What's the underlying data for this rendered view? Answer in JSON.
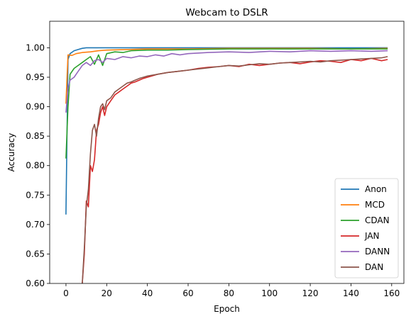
{
  "chart_data": {
    "type": "line",
    "title": "Webcam to DSLR",
    "xlabel": "Epoch",
    "ylabel": "Accuracy",
    "xlim": [
      -8,
      166
    ],
    "ylim": [
      0.6,
      1.045
    ],
    "xticks": [
      0,
      20,
      40,
      60,
      80,
      100,
      120,
      140,
      160
    ],
    "yticks": [
      0.6,
      0.65,
      0.7,
      0.75,
      0.8,
      0.85,
      0.9,
      0.95,
      1.0
    ],
    "grid": false,
    "legend_position": "lower-right",
    "series": [
      {
        "name": "Anon",
        "color": "#1f77b4",
        "points": [
          [
            0,
            0.717
          ],
          [
            1,
            0.98
          ],
          [
            2,
            0.99
          ],
          [
            4,
            0.995
          ],
          [
            6,
            0.997
          ],
          [
            8,
            0.999
          ],
          [
            10,
            1.0
          ],
          [
            20,
            1.0
          ],
          [
            40,
            1.0
          ],
          [
            60,
            1.0
          ],
          [
            80,
            1.0
          ],
          [
            100,
            1.0
          ],
          [
            120,
            1.0
          ],
          [
            140,
            1.0
          ],
          [
            158,
            1.0
          ]
        ]
      },
      {
        "name": "MCD",
        "color": "#ff7f0e",
        "points": [
          [
            0,
            0.905
          ],
          [
            1,
            0.988
          ],
          [
            3,
            0.987
          ],
          [
            5,
            0.99
          ],
          [
            8,
            0.992
          ],
          [
            12,
            0.993
          ],
          [
            16,
            0.995
          ],
          [
            20,
            0.996
          ],
          [
            30,
            0.997
          ],
          [
            40,
            0.998
          ],
          [
            60,
            0.998
          ],
          [
            80,
            0.999
          ],
          [
            100,
            0.999
          ],
          [
            120,
            0.999
          ],
          [
            140,
            0.998
          ],
          [
            158,
            0.999
          ]
        ]
      },
      {
        "name": "CDAN",
        "color": "#2ca02c",
        "points": [
          [
            0,
            0.812
          ],
          [
            1,
            0.9
          ],
          [
            2,
            0.955
          ],
          [
            4,
            0.965
          ],
          [
            6,
            0.97
          ],
          [
            8,
            0.975
          ],
          [
            10,
            0.98
          ],
          [
            12,
            0.985
          ],
          [
            14,
            0.972
          ],
          [
            16,
            0.988
          ],
          [
            18,
            0.97
          ],
          [
            20,
            0.99
          ],
          [
            24,
            0.993
          ],
          [
            28,
            0.992
          ],
          [
            32,
            0.995
          ],
          [
            40,
            0.996
          ],
          [
            50,
            0.996
          ],
          [
            60,
            0.997
          ],
          [
            80,
            0.998
          ],
          [
            100,
            0.998
          ],
          [
            120,
            0.998
          ],
          [
            140,
            0.998
          ],
          [
            158,
            0.998
          ]
        ]
      },
      {
        "name": "JAN",
        "color": "#d62728",
        "points": [
          [
            8,
            0.6
          ],
          [
            9,
            0.65
          ],
          [
            10,
            0.74
          ],
          [
            11,
            0.73
          ],
          [
            12,
            0.8
          ],
          [
            13,
            0.79
          ],
          [
            14,
            0.81
          ],
          [
            15,
            0.86
          ],
          [
            16,
            0.87
          ],
          [
            17,
            0.89
          ],
          [
            18,
            0.9
          ],
          [
            19,
            0.885
          ],
          [
            20,
            0.9
          ],
          [
            22,
            0.91
          ],
          [
            24,
            0.92
          ],
          [
            26,
            0.925
          ],
          [
            28,
            0.93
          ],
          [
            30,
            0.935
          ],
          [
            32,
            0.94
          ],
          [
            34,
            0.942
          ],
          [
            36,
            0.945
          ],
          [
            38,
            0.948
          ],
          [
            40,
            0.95
          ],
          [
            45,
            0.955
          ],
          [
            50,
            0.958
          ],
          [
            55,
            0.96
          ],
          [
            60,
            0.962
          ],
          [
            65,
            0.965
          ],
          [
            70,
            0.967
          ],
          [
            75,
            0.968
          ],
          [
            80,
            0.97
          ],
          [
            85,
            0.968
          ],
          [
            90,
            0.972
          ],
          [
            95,
            0.97
          ],
          [
            100,
            0.972
          ],
          [
            105,
            0.974
          ],
          [
            110,
            0.975
          ],
          [
            115,
            0.973
          ],
          [
            120,
            0.976
          ],
          [
            125,
            0.978
          ],
          [
            130,
            0.977
          ],
          [
            135,
            0.975
          ],
          [
            140,
            0.98
          ],
          [
            145,
            0.978
          ],
          [
            150,
            0.982
          ],
          [
            155,
            0.978
          ],
          [
            158,
            0.98
          ]
        ]
      },
      {
        "name": "DANN",
        "color": "#9467bd",
        "points": [
          [
            0,
            0.89
          ],
          [
            1,
            0.93
          ],
          [
            2,
            0.945
          ],
          [
            4,
            0.95
          ],
          [
            6,
            0.96
          ],
          [
            8,
            0.97
          ],
          [
            10,
            0.975
          ],
          [
            12,
            0.97
          ],
          [
            14,
            0.978
          ],
          [
            16,
            0.98
          ],
          [
            18,
            0.975
          ],
          [
            20,
            0.982
          ],
          [
            24,
            0.98
          ],
          [
            28,
            0.985
          ],
          [
            32,
            0.983
          ],
          [
            36,
            0.986
          ],
          [
            40,
            0.985
          ],
          [
            44,
            0.988
          ],
          [
            48,
            0.986
          ],
          [
            52,
            0.99
          ],
          [
            56,
            0.988
          ],
          [
            60,
            0.99
          ],
          [
            70,
            0.992
          ],
          [
            80,
            0.993
          ],
          [
            90,
            0.992
          ],
          [
            100,
            0.994
          ],
          [
            110,
            0.993
          ],
          [
            120,
            0.995
          ],
          [
            130,
            0.994
          ],
          [
            140,
            0.995
          ],
          [
            150,
            0.994
          ],
          [
            158,
            0.995
          ]
        ]
      },
      {
        "name": "DAN",
        "color": "#8c564b",
        "points": [
          [
            8,
            0.6
          ],
          [
            9,
            0.66
          ],
          [
            10,
            0.73
          ],
          [
            11,
            0.76
          ],
          [
            12,
            0.82
          ],
          [
            13,
            0.86
          ],
          [
            14,
            0.87
          ],
          [
            15,
            0.85
          ],
          [
            16,
            0.88
          ],
          [
            17,
            0.9
          ],
          [
            18,
            0.905
          ],
          [
            19,
            0.895
          ],
          [
            20,
            0.91
          ],
          [
            22,
            0.915
          ],
          [
            24,
            0.925
          ],
          [
            26,
            0.93
          ],
          [
            28,
            0.935
          ],
          [
            30,
            0.94
          ],
          [
            32,
            0.942
          ],
          [
            34,
            0.945
          ],
          [
            36,
            0.948
          ],
          [
            38,
            0.95
          ],
          [
            40,
            0.952
          ],
          [
            45,
            0.955
          ],
          [
            50,
            0.958
          ],
          [
            55,
            0.96
          ],
          [
            60,
            0.962
          ],
          [
            65,
            0.964
          ],
          [
            70,
            0.966
          ],
          [
            75,
            0.968
          ],
          [
            80,
            0.97
          ],
          [
            85,
            0.969
          ],
          [
            90,
            0.971
          ],
          [
            95,
            0.973
          ],
          [
            100,
            0.972
          ],
          [
            105,
            0.974
          ],
          [
            110,
            0.975
          ],
          [
            115,
            0.976
          ],
          [
            120,
            0.977
          ],
          [
            125,
            0.976
          ],
          [
            130,
            0.978
          ],
          [
            135,
            0.979
          ],
          [
            140,
            0.98
          ],
          [
            145,
            0.981
          ],
          [
            150,
            0.982
          ],
          [
            155,
            0.983
          ],
          [
            158,
            0.985
          ]
        ]
      }
    ]
  }
}
